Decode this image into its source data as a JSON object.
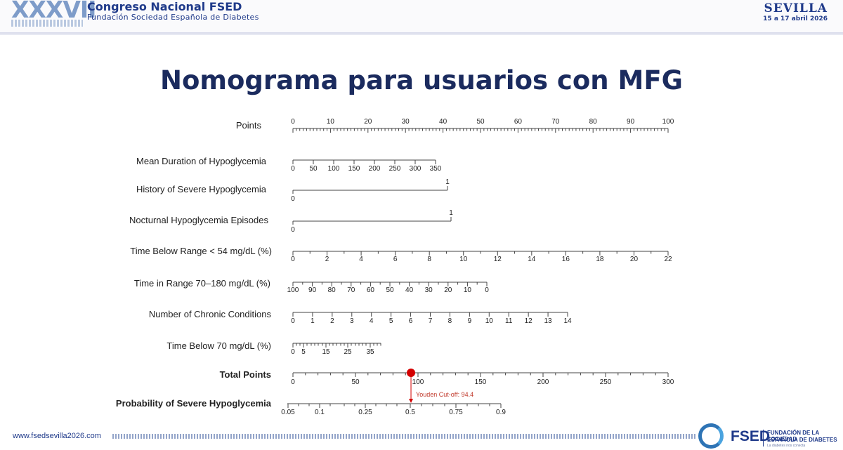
{
  "header": {
    "logo_text": "XXXVII",
    "conference_title": "Congreso Nacional FSED",
    "conference_subtitle": "Fundación Sociedad Española de Diabetes",
    "city": "SEVILLA",
    "dates": "15 a 17 abril 2026"
  },
  "slide": {
    "title": "Nomograma para usuarios con MFG"
  },
  "nomogram": {
    "rows": [
      {
        "label": "Points",
        "ticks": [
          "0",
          "10",
          "20",
          "30",
          "40",
          "50",
          "60",
          "70",
          "80",
          "90",
          "100"
        ],
        "bold": false
      },
      {
        "label": "Mean Duration of Hypoglycemia",
        "ticks": [
          "0",
          "50",
          "100",
          "150",
          "200",
          "250",
          "300",
          "350"
        ],
        "bold": false
      },
      {
        "label": "History of Severe Hypoglycemia",
        "ticks": [
          "0",
          "1"
        ],
        "bold": false
      },
      {
        "label": "Nocturnal Hypoglycemia Episodes",
        "ticks": [
          "0",
          "1"
        ],
        "bold": false
      },
      {
        "label": "Time Below Range < 54 mg/dL (%)",
        "ticks": [
          "0",
          "2",
          "4",
          "6",
          "8",
          "10",
          "12",
          "14",
          "16",
          "18",
          "20",
          "22"
        ],
        "bold": false
      },
      {
        "label": "Time in Range 70–180 mg/dL (%)",
        "ticks": [
          "100",
          "90",
          "80",
          "70",
          "60",
          "50",
          "40",
          "30",
          "20",
          "10",
          "0"
        ],
        "bold": false
      },
      {
        "label": "Number of Chronic Conditions",
        "ticks": [
          "0",
          "1",
          "2",
          "3",
          "4",
          "5",
          "6",
          "7",
          "8",
          "9",
          "10",
          "11",
          "12",
          "13",
          "14"
        ],
        "bold": false
      },
      {
        "label": "Time Below 70 mg/dL (%)",
        "ticks": [
          "0",
          "5",
          "15",
          "25",
          "35"
        ],
        "bold": false
      },
      {
        "label": "Total Points",
        "ticks": [
          "0",
          "50",
          "100",
          "150",
          "200",
          "250",
          "300"
        ],
        "bold": true
      },
      {
        "label": "Probability of Severe Hypoglycemia",
        "ticks": [
          "0.05",
          "0.1",
          "0.25",
          "0.5",
          "0.75",
          "0.9"
        ],
        "bold": true
      }
    ],
    "cutoff": {
      "label": "Youden Cut-off: 94.4",
      "value": 94.4,
      "color": "#d40000"
    }
  },
  "footer": {
    "url": "www.fsedsevilla2026.com",
    "brand": "FSED",
    "brand_name_line1": "FUNDACIÓN DE LA SOCIEDAD",
    "brand_name_line2": "ESPAÑOLA DE DIABETES",
    "brand_tagline": "La diabetes nos conecta"
  }
}
